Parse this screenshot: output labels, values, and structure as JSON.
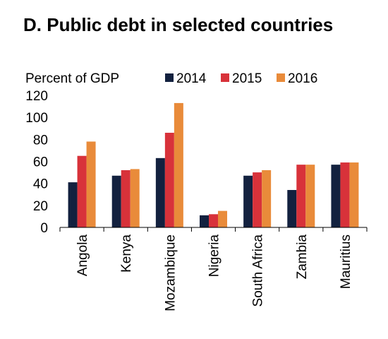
{
  "chart_data": {
    "type": "bar",
    "title": "D. Public debt in selected countries",
    "ylabel": "Percent of GDP",
    "xlabel": "",
    "ylim": [
      0,
      120
    ],
    "yticks": [
      0,
      20,
      40,
      60,
      80,
      100,
      120
    ],
    "grid": false,
    "legend_position": "top",
    "categories": [
      "Angola",
      "Kenya",
      "Mozambique",
      "Nigeria",
      "South Africa",
      "Zambia",
      "Mauritius"
    ],
    "series": [
      {
        "name": "2014",
        "color": "#13213f",
        "values": [
          41,
          47,
          63,
          11,
          47,
          34,
          57
        ]
      },
      {
        "name": "2015",
        "color": "#d8323a",
        "values": [
          65,
          52,
          86,
          12,
          50,
          57,
          59
        ]
      },
      {
        "name": "2016",
        "color": "#e98b3a",
        "values": [
          78,
          53,
          113,
          15,
          52,
          57,
          59
        ]
      }
    ]
  }
}
